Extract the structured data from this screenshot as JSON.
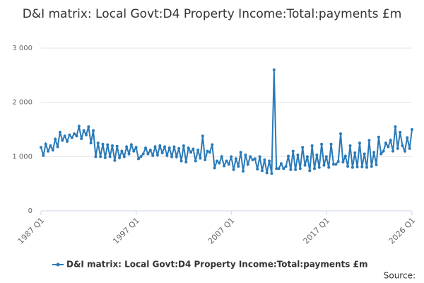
{
  "chart_data": {
    "type": "line",
    "title": "D&I matrix: Local Govt:D4 Property Income:Total:payments £m",
    "source": "Source:",
    "categories": [
      "1987 Q1",
      null,
      null,
      null,
      null,
      null,
      null,
      null,
      null,
      null,
      null,
      null,
      null,
      null,
      null,
      null,
      null,
      null,
      null,
      null,
      null,
      null,
      null,
      null,
      null,
      null,
      null,
      null,
      null,
      null,
      null,
      null,
      null,
      null,
      null,
      null,
      null,
      null,
      null,
      null,
      "1997 Q1",
      null,
      null,
      null,
      null,
      null,
      null,
      null,
      null,
      null,
      null,
      null,
      null,
      null,
      null,
      null,
      null,
      null,
      null,
      null,
      null,
      null,
      null,
      null,
      null,
      null,
      null,
      null,
      null,
      null,
      null,
      null,
      null,
      null,
      null,
      null,
      null,
      null,
      null,
      null,
      "2007 Q1",
      null,
      null,
      null,
      null,
      null,
      null,
      null,
      null,
      null,
      null,
      null,
      null,
      null,
      null,
      null,
      null,
      null,
      null,
      null,
      null,
      null,
      null,
      null,
      null,
      null,
      null,
      null,
      null,
      null,
      null,
      null,
      null,
      null,
      null,
      null,
      null,
      null,
      null,
      null,
      "2017 Q1",
      null,
      null,
      null,
      null,
      null,
      null,
      null,
      null,
      null,
      null,
      null,
      null,
      null,
      null,
      null,
      null,
      null,
      null,
      null,
      null,
      null,
      null,
      null,
      null,
      null,
      null,
      null,
      null,
      null,
      null,
      null,
      null,
      null,
      null,
      null,
      "2026 Q1"
    ],
    "series": [
      {
        "name": "D&I matrix: Local Govt:D4 Property Income:Total:payments £m",
        "color": "#2a7ab8",
        "values": [
          1170,
          1020,
          1230,
          1100,
          1200,
          1120,
          1320,
          1180,
          1450,
          1300,
          1380,
          1280,
          1400,
          1350,
          1420,
          1380,
          1560,
          1330,
          1480,
          1400,
          1550,
          1250,
          1480,
          1000,
          1250,
          1000,
          1230,
          980,
          1220,
          1000,
          1200,
          930,
          1190,
          980,
          1100,
          1000,
          1180,
          1050,
          1220,
          1100,
          1170,
          960,
          1000,
          1050,
          1160,
          1050,
          1120,
          1020,
          1180,
          1030,
          1200,
          1070,
          1180,
          1020,
          1160,
          1000,
          1180,
          1000,
          1150,
          920,
          1200,
          900,
          1160,
          1080,
          1140,
          920,
          1120,
          970,
          1380,
          940,
          1100,
          1080,
          1220,
          790,
          920,
          880,
          1000,
          830,
          920,
          860,
          1000,
          760,
          960,
          820,
          1080,
          730,
          1030,
          860,
          1000,
          940,
          960,
          770,
          1000,
          740,
          940,
          700,
          920,
          690,
          2600,
          780,
          780,
          870,
          780,
          820,
          1010,
          760,
          1100,
          760,
          1030,
          780,
          1170,
          840,
          1000,
          740,
          1200,
          780,
          1030,
          800,
          1230,
          840,
          1000,
          800,
          1230,
          860,
          860,
          910,
          1420,
          900,
          1010,
          820,
          1200,
          800,
          1070,
          810,
          1250,
          810,
          1050,
          800,
          1300,
          820,
          1080,
          850,
          1360,
          1050,
          1100,
          1250,
          1180,
          1300,
          1100,
          1550,
          1150,
          1450,
          1200,
          1100,
          1350,
          1150,
          1500
        ]
      }
    ],
    "ylim": [
      0,
      3000
    ],
    "yticks": [
      0,
      {
        "value": 1000,
        "label": "1 000"
      },
      {
        "value": 2000,
        "label": "2 000"
      },
      {
        "value": 3000,
        "label": "3 000"
      }
    ],
    "grid": true
  }
}
